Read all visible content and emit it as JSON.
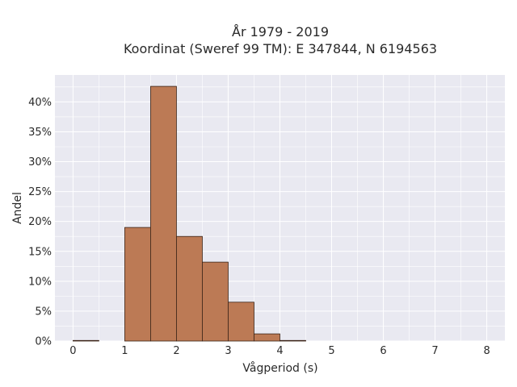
{
  "chart_data": {
    "type": "bar",
    "title_line1": "År 1979 - 2019",
    "title_line2": "Koordinat (Sweref 99 TM): E 347844, N 6194563",
    "xlabel": "Vågperiod (s)",
    "ylabel": "Andel",
    "xlim": [
      -0.35,
      8.35
    ],
    "ylim": [
      0,
      44.5
    ],
    "x_ticks": [
      0,
      1,
      2,
      3,
      4,
      5,
      6,
      7,
      8
    ],
    "x_tick_labels": [
      "0",
      "1",
      "2",
      "3",
      "4",
      "5",
      "6",
      "7",
      "8"
    ],
    "y_ticks": [
      0,
      5,
      10,
      15,
      20,
      25,
      30,
      35,
      40
    ],
    "y_tick_labels": [
      "0%",
      "5%",
      "10%",
      "15%",
      "20%",
      "25%",
      "30%",
      "35%",
      "40%"
    ],
    "bin_width": 0.5,
    "bins": [
      {
        "x0": 0.0,
        "x1": 0.5,
        "value": 0.1
      },
      {
        "x0": 0.5,
        "x1": 1.0,
        "value": 0.0
      },
      {
        "x0": 1.0,
        "x1": 1.5,
        "value": 19.0
      },
      {
        "x0": 1.5,
        "x1": 2.0,
        "value": 42.6
      },
      {
        "x0": 2.0,
        "x1": 2.5,
        "value": 17.5
      },
      {
        "x0": 2.5,
        "x1": 3.0,
        "value": 13.2
      },
      {
        "x0": 3.0,
        "x1": 3.5,
        "value": 6.5
      },
      {
        "x0": 3.5,
        "x1": 4.0,
        "value": 1.2
      },
      {
        "x0": 4.0,
        "x1": 4.5,
        "value": 0.1
      }
    ],
    "grid": true,
    "colors": {
      "bar_fill": "#bc7a55",
      "bar_stroke": "#3b2418",
      "plot_background": "#e9e9f1",
      "grid": "#ffffff"
    }
  }
}
